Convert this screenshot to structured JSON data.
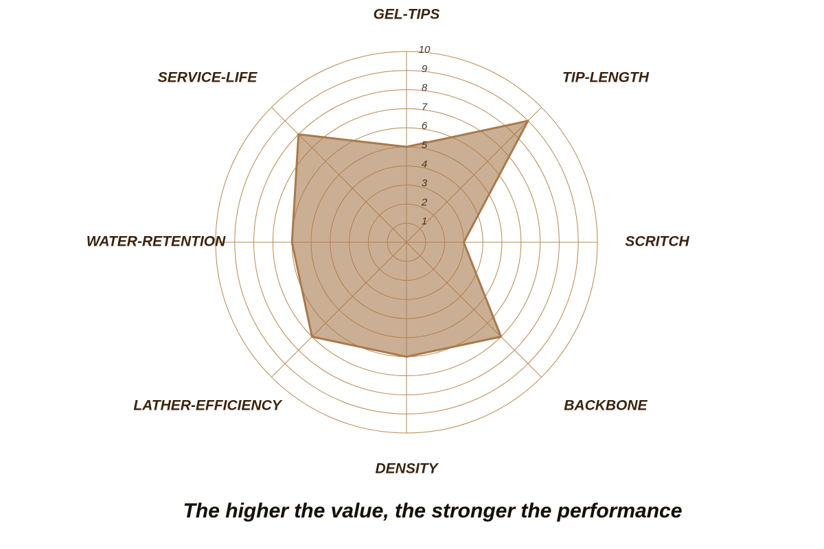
{
  "chart_data": {
    "type": "radar",
    "title": "The higher the value, the stronger the performance",
    "categories": [
      "GEL-TIPS",
      "TIP-LENGTH",
      "SCRITCH",
      "BACKBONE",
      "DENSITY",
      "LATHER-EFFICIENCY",
      "WATER-RETENTION",
      "SERVICE-LIFE"
    ],
    "values": [
      5,
      9,
      3,
      7,
      6,
      7,
      6,
      8
    ],
    "color": "#a87a4c",
    "ylim": [
      0,
      10
    ],
    "yticks": [
      1,
      2,
      3,
      4,
      5,
      6,
      7,
      8,
      9,
      10
    ],
    "grid": true
  }
}
